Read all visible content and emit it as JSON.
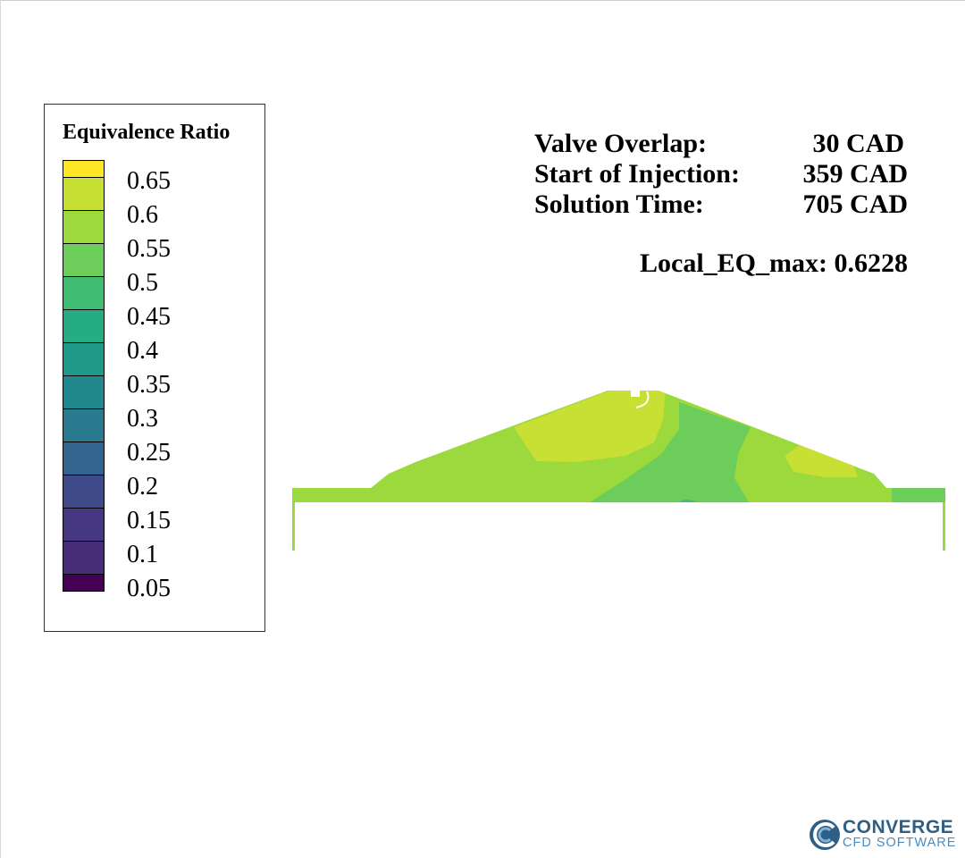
{
  "legend": {
    "title": "Equivalence Ratio",
    "colors": [
      "#fde725",
      "#c8df34",
      "#9bd93c",
      "#6ccd5a",
      "#40bd72",
      "#25ac82",
      "#1f9a8a",
      "#21888d",
      "#297a8e",
      "#32648e",
      "#3e4a89",
      "#453781",
      "#472c7a",
      "#440154"
    ],
    "labels": [
      "0.65",
      "0.6",
      "0.55",
      "0.5",
      "0.45",
      "0.4",
      "0.35",
      "0.3",
      "0.25",
      "0.2",
      "0.15",
      "0.1",
      "0.05"
    ]
  },
  "info": {
    "valve_overlap_label": "Valve Overlap:",
    "valve_overlap_value": "30 CAD",
    "start_injection_label": "Start of Injection:",
    "start_injection_value": "359 CAD",
    "solution_time_label": "Solution Time:",
    "solution_time_value": "705 CAD",
    "local_eq_max": "Local_EQ_max: 0.6228"
  },
  "logo": {
    "name": "CONVERGE",
    "subtitle": "CFD SOFTWARE"
  }
}
